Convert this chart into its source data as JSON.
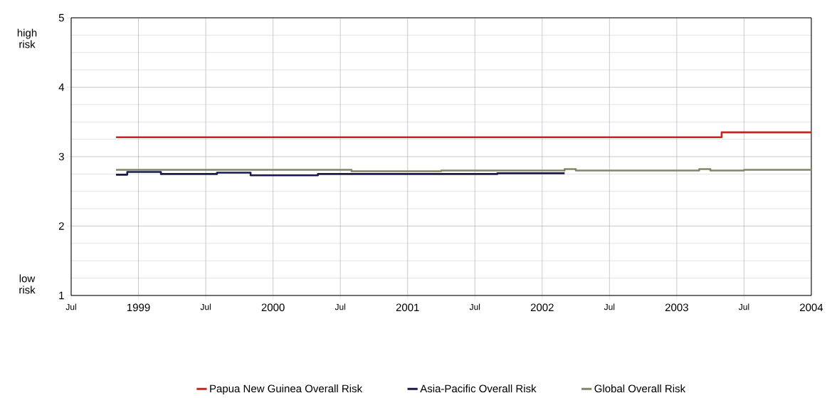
{
  "chart_data": {
    "type": "step",
    "annotations": [
      "high risk",
      "low risk"
    ],
    "xlim": [
      "1998-07",
      "2004"
    ],
    "ylim": [
      1,
      5
    ],
    "xticks": [
      {
        "value": "1998-07",
        "label": "Jul"
      },
      {
        "value": "1999",
        "label": "1999"
      },
      {
        "value": "1999-07",
        "label": "Jul"
      },
      {
        "value": "2000",
        "label": "2000"
      },
      {
        "value": "2000-07",
        "label": "Jul"
      },
      {
        "value": "2001",
        "label": "2001"
      },
      {
        "value": "2001-07",
        "label": "Jul"
      },
      {
        "value": "2002",
        "label": "2002"
      },
      {
        "value": "2002-07",
        "label": "Jul"
      },
      {
        "value": "2003",
        "label": "2003"
      },
      {
        "value": "2003-07",
        "label": "Jul"
      },
      {
        "value": "2004",
        "label": "2004"
      }
    ],
    "yticks": [
      1,
      2,
      3,
      4,
      5
    ],
    "grid": true,
    "legend": "bottom",
    "line_style": "solid",
    "series": [
      {
        "name": "Papua New Guinea Overall Risk",
        "color": "#cc2222",
        "x": [
          "1998-11",
          "2003-05",
          "2004-01"
        ],
        "values": [
          3.28,
          3.35,
          3.35
        ]
      },
      {
        "name": "Asia-Pacific Overall Risk",
        "color": "#1a1a4a",
        "x": [
          "1998-11",
          "1998-12",
          "1999-03",
          "1999-08",
          "1999-11",
          "2000-05",
          "2001-09",
          "2002-03"
        ],
        "values": [
          2.74,
          2.78,
          2.75,
          2.77,
          2.73,
          2.75,
          2.76,
          2.76
        ]
      },
      {
        "name": "Global Overall Risk",
        "color": "#858565",
        "x": [
          "1998-11",
          "2000-08",
          "2001-04",
          "2002-03",
          "2002-04",
          "2003-03",
          "2003-04",
          "2003-07",
          "2004-01"
        ],
        "values": [
          2.81,
          2.79,
          2.8,
          2.82,
          2.8,
          2.82,
          2.8,
          2.81,
          2.81
        ]
      }
    ]
  }
}
